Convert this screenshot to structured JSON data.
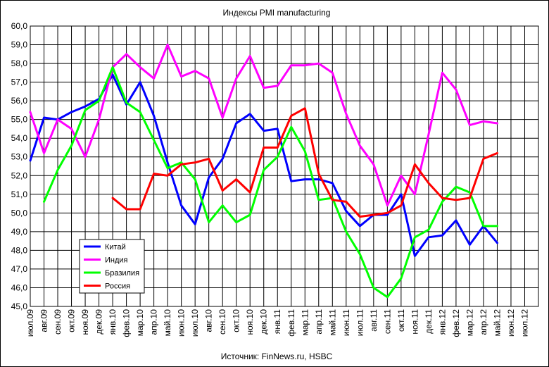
{
  "chart_data": {
    "type": "line",
    "title": "Индексы PMI manufacturing",
    "source": "Источник:  FinNews.ru,  HSBC",
    "ylim": [
      45.0,
      60.0
    ],
    "y_ticks": [
      "60,0",
      "59,0",
      "58,0",
      "57,0",
      "56,0",
      "55,0",
      "54,0",
      "53,0",
      "52,0",
      "51,0",
      "50,0",
      "49,0",
      "48,0",
      "47,0",
      "46,0",
      "45,0"
    ],
    "categories": [
      "июл.09",
      "авг.09",
      "сен.09",
      "окт.09",
      "ноя.09",
      "дек.09",
      "янв.10",
      "фев.10",
      "мар.10",
      "апр.10",
      "май.10",
      "июн.10",
      "июл.10",
      "авг.10",
      "сен.10",
      "окт.10",
      "ноя.10",
      "дек.10",
      "янв.11",
      "фев.11",
      "мар.11",
      "апр.11",
      "май.11",
      "июн.11",
      "июл.11",
      "авг.11",
      "сен.11",
      "окт.11",
      "ноя.11",
      "дек.11",
      "янв.12",
      "фев.12",
      "мар.12",
      "апр.12",
      "май.12",
      "июн.12",
      "июл.12"
    ],
    "grid": true,
    "legend_position": "bottom-left inside",
    "series": [
      {
        "name": "Китай",
        "color": "#0000ff",
        "values": [
          52.8,
          55.1,
          55.0,
          55.4,
          55.7,
          56.1,
          57.4,
          55.8,
          57.0,
          55.2,
          52.7,
          50.4,
          49.4,
          51.9,
          52.9,
          54.8,
          55.3,
          54.4,
          54.5,
          51.7,
          51.8,
          51.8,
          51.6,
          50.1,
          49.3,
          49.9,
          49.9,
          51.0,
          47.7,
          48.7,
          48.8,
          49.6,
          48.3,
          49.3,
          48.4,
          null,
          null
        ]
      },
      {
        "name": "Индия",
        "color": "#ff00ff",
        "values": [
          55.4,
          53.2,
          55.0,
          54.5,
          53.0,
          55.0,
          57.8,
          58.5,
          57.8,
          57.2,
          59.0,
          57.3,
          57.6,
          57.2,
          55.1,
          57.2,
          58.4,
          56.7,
          56.8,
          57.9,
          57.9,
          58.0,
          57.5,
          55.3,
          53.6,
          52.6,
          50.4,
          52.0,
          51.0,
          54.2,
          57.5,
          56.6,
          54.7,
          54.9,
          54.8,
          null,
          null
        ]
      },
      {
        "name": "Бразилия",
        "color": "#00ff00",
        "values": [
          null,
          50.6,
          52.3,
          53.6,
          55.5,
          56.0,
          57.8,
          55.9,
          55.4,
          53.9,
          52.4,
          52.7,
          51.8,
          49.5,
          50.4,
          49.5,
          49.9,
          52.3,
          53.0,
          54.6,
          53.3,
          50.7,
          50.8,
          49.0,
          47.8,
          46.0,
          45.5,
          46.5,
          48.7,
          49.1,
          50.6,
          51.4,
          51.1,
          49.3,
          49.3,
          null,
          null
        ]
      },
      {
        "name": "Россия",
        "color": "#ff0000",
        "values": [
          null,
          null,
          null,
          null,
          null,
          null,
          50.8,
          50.2,
          50.2,
          52.1,
          52.0,
          52.6,
          52.7,
          52.9,
          51.2,
          51.8,
          51.1,
          53.5,
          53.5,
          55.2,
          55.6,
          52.1,
          50.7,
          50.6,
          49.8,
          49.9,
          50.0,
          50.4,
          52.6,
          51.6,
          50.8,
          50.7,
          50.8,
          52.9,
          53.2,
          null,
          null
        ]
      }
    ]
  }
}
